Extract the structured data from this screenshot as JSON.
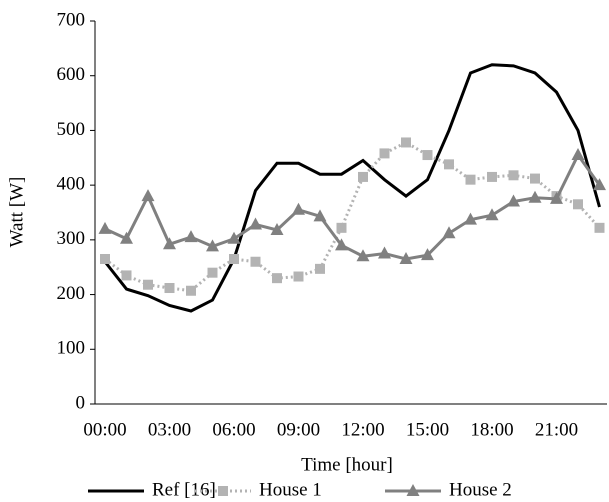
{
  "chart_data": {
    "type": "line",
    "x_label": "Time [hour]",
    "y_label": "Watt [W]",
    "categories": [
      "00:00",
      null,
      null,
      "03:00",
      null,
      null,
      "06:00",
      null,
      null,
      "09:00",
      null,
      null,
      "12:00",
      null,
      null,
      "15:00",
      null,
      null,
      "18:00",
      null,
      null,
      "21:00",
      null,
      null
    ],
    "series": [
      {
        "name": "Ref [16]",
        "color": "#000000",
        "dash": false,
        "marker": "none",
        "values": [
          260,
          210,
          198,
          180,
          170,
          190,
          265,
          390,
          440,
          440,
          420,
          420,
          445,
          410,
          380,
          410,
          500,
          605,
          620,
          618,
          605,
          570,
          500,
          360
        ]
      },
      {
        "name": "House 1",
        "color": "#b3b3b3",
        "dash": true,
        "marker": "square",
        "values": [
          265,
          235,
          218,
          212,
          207,
          240,
          265,
          260,
          230,
          233,
          247,
          322,
          415,
          458,
          478,
          455,
          438,
          410,
          415,
          418,
          412,
          380,
          365,
          322
        ]
      },
      {
        "name": "House 2",
        "color": "#808080",
        "dash": false,
        "marker": "triangle",
        "values": [
          320,
          302,
          380,
          292,
          305,
          288,
          302,
          328,
          318,
          355,
          343,
          290,
          270,
          275,
          265,
          272,
          312,
          337,
          345,
          370,
          377,
          375,
          455,
          400
        ]
      }
    ],
    "ylim": [
      0,
      700
    ],
    "yticks": [
      0,
      100,
      200,
      300,
      400,
      500,
      600,
      700
    ],
    "grid": false,
    "legend": "bottom"
  }
}
